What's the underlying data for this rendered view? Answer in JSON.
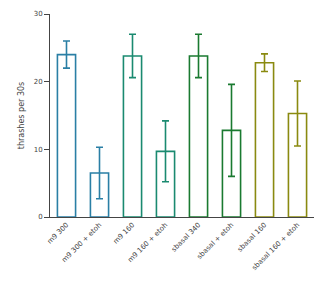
{
  "chart_data": {
    "type": "bar",
    "categories": [
      "m9 300",
      "m9 300 + etoh",
      "m9 160",
      "m9 160 + etoh",
      "sbasal 340",
      "sbasal + etoh",
      "sbasal 160",
      "sbasal 160 + etoh"
    ],
    "values": [
      24.0,
      6.5,
      23.8,
      9.7,
      23.8,
      12.8,
      22.8,
      15.3
    ],
    "errors": [
      2.0,
      3.8,
      3.2,
      4.5,
      3.2,
      6.8,
      1.3,
      4.8
    ],
    "colors": [
      "#2a7fa5",
      "#2a7fa5",
      "#1a8a70",
      "#1a8a70",
      "#1a7a30",
      "#1a7a30",
      "#8a8a10",
      "#8a8a10"
    ],
    "ylabel": "thrashes per 30s",
    "ylim": [
      0,
      30
    ],
    "yticks": [
      0,
      10,
      20,
      30
    ],
    "grid": false
  }
}
